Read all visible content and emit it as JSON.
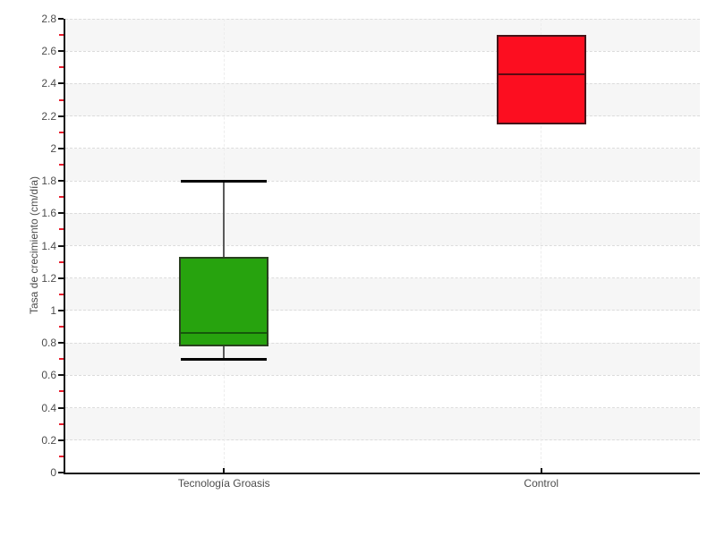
{
  "chart_data": {
    "type": "boxplot",
    "title": "",
    "xlabel": "",
    "ylabel": "Tasa de crecimiento (cm/día)",
    "ylim": [
      0,
      2.8
    ],
    "y_major_step": 0.2,
    "y_minor_step": 0.1,
    "grid_on": true,
    "legend": null,
    "categories": [
      "Tecnología Groasis",
      "Control"
    ],
    "y_tick_labels": [
      "0",
      "0.2",
      "0.4",
      "0.6",
      "0.8",
      "1",
      "1.2",
      "1.4",
      "1.6",
      "1.8",
      "2",
      "2.2",
      "2.4",
      "2.6",
      "2.8"
    ],
    "series": [
      {
        "name": "Tecnología Groasis",
        "whisker_low": 0.7,
        "q1": 0.78,
        "median": 0.86,
        "q3": 1.33,
        "whisker_high": 1.8,
        "has_whiskers": true,
        "fill": "#27a30e",
        "border": "#2a401f",
        "median_color": "#15590b"
      },
      {
        "name": "Control",
        "whisker_low": null,
        "q1": 2.15,
        "median": 2.46,
        "q3": 2.7,
        "whisker_high": null,
        "has_whiskers": false,
        "fill": "#fc0e20",
        "border": "#451318",
        "median_color": "#5c0a12"
      }
    ],
    "colors": {
      "band_gray": "#f6f6f6",
      "band_white": "#ffffff",
      "h_grid": "#dcdcdc",
      "v_grid": "#ededed",
      "axis": "#111111",
      "minor_tick": "#e81c2c",
      "tick_label": "#4d4d4d",
      "whisker": "#5a5a5a",
      "cap": "#000000"
    }
  }
}
